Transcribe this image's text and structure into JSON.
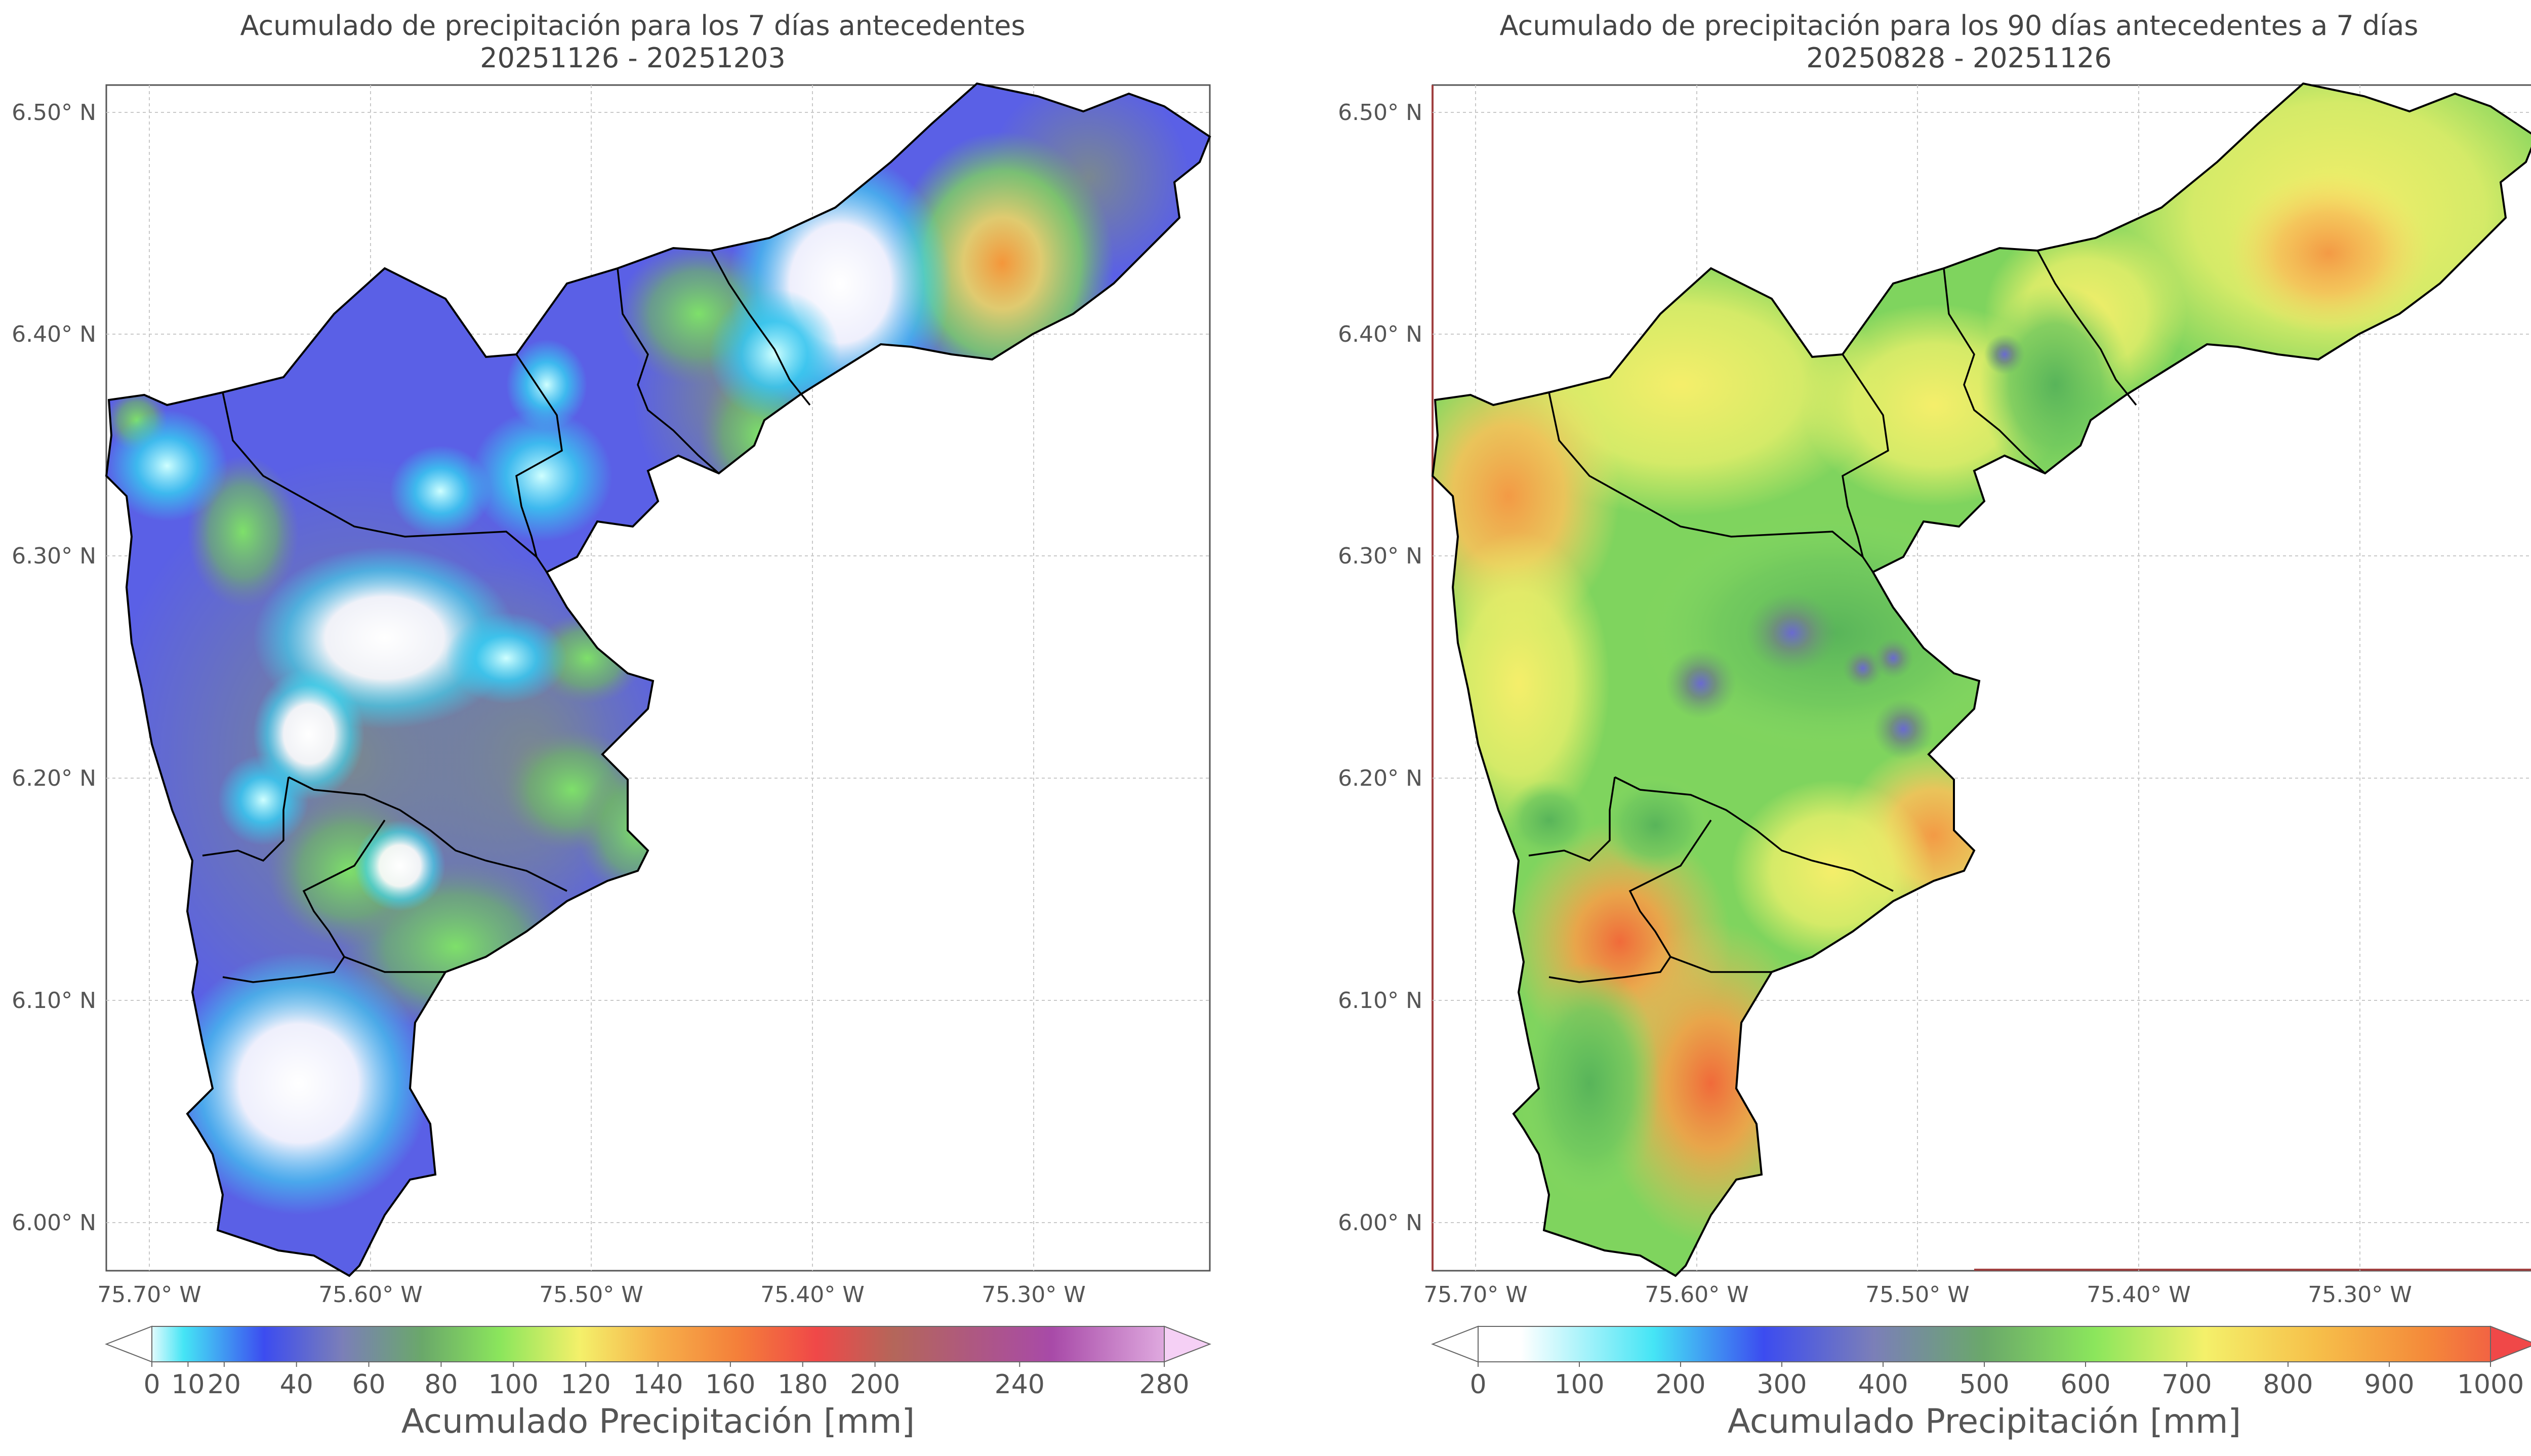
{
  "panels": [
    {
      "title_line1": "Acumulado de precipitación para los 7 días antecedentes",
      "title_line2": "20251126 - 20251203",
      "lat_ticks": [
        "6.50° N",
        "6.40° N",
        "6.30° N",
        "6.20° N",
        "6.10° N",
        "6.00° N"
      ],
      "lon_ticks": [
        "75.70° W",
        "75.60° W",
        "75.50° W",
        "75.40° W",
        "75.30° W"
      ],
      "colorbar": {
        "label": "Acumulado Precipitación [mm]",
        "ticks": [
          "0",
          "10",
          "20",
          "40",
          "60",
          "80",
          "100",
          "120",
          "140",
          "160",
          "180",
          "200",
          "240",
          "280"
        ],
        "tick_values": [
          0,
          10,
          20,
          40,
          60,
          80,
          100,
          120,
          140,
          160,
          180,
          200,
          240,
          280
        ],
        "range": [
          0,
          280
        ]
      }
    },
    {
      "title_line1": "Acumulado de precipitación para los 90 días antecedentes a 7 días",
      "title_line2": "20250828 - 20251126",
      "lat_ticks": [
        "6.50° N",
        "6.40° N",
        "6.30° N",
        "6.20° N",
        "6.10° N",
        "6.00° N"
      ],
      "lon_ticks": [
        "75.70° W",
        "75.60° W",
        "75.50° W",
        "75.40° W",
        "75.30° W"
      ],
      "colorbar": {
        "label": "Acumulado Precipitación [mm]",
        "ticks": [
          "0",
          "100",
          "200",
          "300",
          "400",
          "500",
          "600",
          "700",
          "800",
          "900",
          "1000"
        ],
        "tick_values": [
          0,
          100,
          200,
          300,
          400,
          500,
          600,
          700,
          800,
          900,
          1000
        ],
        "range": [
          0,
          1000
        ]
      }
    }
  ]
}
